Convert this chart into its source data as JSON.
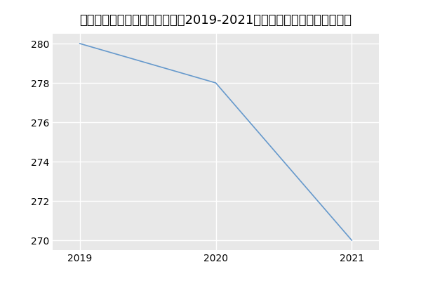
{
  "title": "内蒙古大学化学化工学院化学（2019-2021历年复试）研究生录取分数线",
  "x": [
    2019,
    2020,
    2021
  ],
  "y": [
    280,
    278,
    270
  ],
  "line_color": "#6699cc",
  "background_color": "#ffffff",
  "plot_bg_color": "#e8e8e8",
  "grid_color": "#ffffff",
  "xlim": [
    2018.8,
    2021.2
  ],
  "ylim": [
    269.5,
    280.5
  ],
  "yticks": [
    270,
    272,
    274,
    276,
    278,
    280
  ],
  "xticks": [
    2019,
    2020,
    2021
  ],
  "title_fontsize": 13
}
